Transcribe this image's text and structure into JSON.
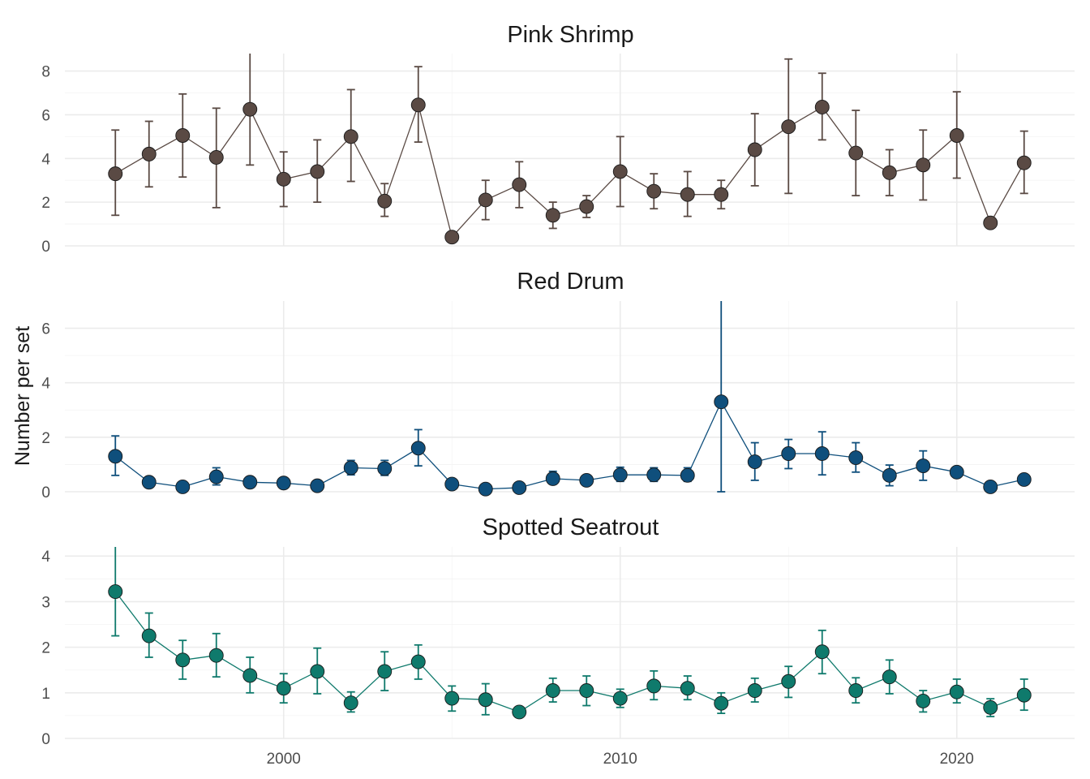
{
  "chart_data": {
    "type": "line",
    "ylabel": "Number per set",
    "xlabel": "",
    "x_ticks": [
      2000,
      2010,
      2020
    ],
    "x_range": [
      1993.5,
      2023.5
    ],
    "grid": true,
    "panels": [
      {
        "title": "Pink Shrimp",
        "color": "#5a4a44",
        "ylim": [
          0,
          8.8
        ],
        "y_ticks": [
          0,
          2,
          4,
          6,
          8
        ],
        "series": [
          {
            "x": [
              1995,
              1996,
              1997,
              1998,
              1999,
              2000,
              2001,
              2002,
              2003,
              2004,
              2005,
              2006,
              2007,
              2008,
              2009,
              2010,
              2011,
              2012,
              2013,
              2014,
              2015,
              2016,
              2017,
              2018,
              2019,
              2020,
              2021,
              2022
            ],
            "y": [
              3.3,
              4.2,
              5.05,
              4.05,
              6.25,
              3.05,
              3.4,
              5.0,
              2.05,
              6.45,
              0.4,
              2.1,
              2.8,
              1.4,
              1.8,
              3.4,
              2.5,
              2.35,
              2.35,
              4.4,
              5.45,
              6.35,
              4.25,
              3.35,
              3.7,
              5.05,
              1.05,
              3.8
            ],
            "lower": [
              1.4,
              2.7,
              3.15,
              1.75,
              3.7,
              1.8,
              2.0,
              2.95,
              1.35,
              4.75,
              null,
              1.2,
              1.75,
              0.8,
              1.3,
              1.8,
              1.7,
              1.35,
              1.7,
              2.75,
              2.4,
              4.85,
              2.3,
              2.3,
              2.1,
              3.1,
              null,
              2.4
            ],
            "upper": [
              5.3,
              5.7,
              6.95,
              6.3,
              8.8,
              4.3,
              4.85,
              7.15,
              2.85,
              8.2,
              null,
              3.0,
              3.85,
              2.0,
              2.3,
              5.0,
              3.3,
              3.4,
              3.0,
              6.05,
              8.55,
              7.9,
              6.2,
              4.4,
              5.3,
              7.05,
              null,
              5.25
            ]
          }
        ]
      },
      {
        "title": "Red Drum",
        "color": "#0f4f7c",
        "ylim": [
          0,
          7.0
        ],
        "y_ticks": [
          0,
          2,
          4,
          6
        ],
        "series": [
          {
            "x": [
              1995,
              1996,
              1997,
              1998,
              1999,
              2000,
              2001,
              2002,
              2003,
              2004,
              2005,
              2006,
              2007,
              2008,
              2009,
              2010,
              2011,
              2012,
              2013,
              2014,
              2015,
              2016,
              2017,
              2018,
              2019,
              2020,
              2021,
              2022
            ],
            "y": [
              1.3,
              0.35,
              0.18,
              0.55,
              0.35,
              0.32,
              0.22,
              0.88,
              0.85,
              1.6,
              0.28,
              0.1,
              0.15,
              0.48,
              0.42,
              0.62,
              0.62,
              0.6,
              3.3,
              1.1,
              1.4,
              1.4,
              1.25,
              0.6,
              0.95,
              0.72,
              0.18,
              0.45
            ],
            "lower": [
              0.6,
              null,
              null,
              0.25,
              null,
              null,
              null,
              0.62,
              0.6,
              0.95,
              null,
              null,
              null,
              0.28,
              null,
              0.38,
              0.38,
              0.38,
              0.0,
              0.42,
              0.85,
              0.62,
              0.72,
              0.22,
              0.42,
              null,
              null,
              null
            ],
            "upper": [
              2.05,
              null,
              null,
              0.88,
              null,
              null,
              null,
              1.15,
              1.15,
              2.28,
              null,
              null,
              null,
              0.75,
              null,
              0.9,
              0.88,
              0.88,
              7.0,
              1.8,
              1.92,
              2.2,
              1.8,
              0.98,
              1.5,
              null,
              null,
              null
            ]
          }
        ]
      },
      {
        "title": "Spotted Seatrout",
        "color": "#0f7a6c",
        "ylim": [
          0,
          4.2
        ],
        "y_ticks": [
          0,
          1,
          2,
          3,
          4
        ],
        "series": [
          {
            "x": [
              1995,
              1996,
              1997,
              1998,
              1999,
              2000,
              2001,
              2002,
              2003,
              2004,
              2005,
              2006,
              2007,
              2008,
              2009,
              2010,
              2011,
              2012,
              2013,
              2014,
              2015,
              2016,
              2017,
              2018,
              2019,
              2020,
              2021,
              2022
            ],
            "y": [
              3.22,
              2.25,
              1.72,
              1.82,
              1.38,
              1.1,
              1.47,
              0.78,
              1.47,
              1.68,
              0.88,
              0.85,
              0.58,
              1.05,
              1.05,
              0.88,
              1.15,
              1.1,
              0.77,
              1.05,
              1.25,
              1.9,
              1.05,
              1.35,
              0.82,
              1.02,
              0.68,
              0.95
            ],
            "lower": [
              2.25,
              1.78,
              1.3,
              1.35,
              1.0,
              0.78,
              0.98,
              0.58,
              1.05,
              1.3,
              0.6,
              0.52,
              null,
              0.8,
              0.72,
              0.68,
              0.85,
              0.85,
              0.55,
              0.8,
              0.9,
              1.42,
              0.78,
              0.98,
              0.58,
              0.78,
              0.48,
              0.62
            ],
            "upper": [
              4.2,
              2.75,
              2.15,
              2.3,
              1.78,
              1.42,
              1.98,
              1.02,
              1.9,
              2.05,
              1.15,
              1.2,
              null,
              1.32,
              1.37,
              1.08,
              1.48,
              1.37,
              1.0,
              1.32,
              1.58,
              2.37,
              1.33,
              1.72,
              1.05,
              1.3,
              0.87,
              1.3
            ]
          }
        ]
      }
    ]
  }
}
